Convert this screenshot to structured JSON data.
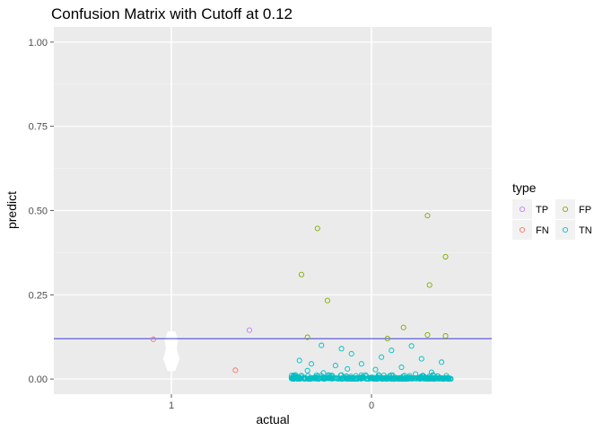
{
  "chart_data": {
    "type": "scatter",
    "title": "Confusion Matrix with Cutoff at 0.12",
    "xlabel": "actual",
    "ylabel": "predict",
    "x_categories": [
      "1",
      "0"
    ],
    "ylim": [
      -0.045,
      1.045
    ],
    "y_ticks": [
      0.0,
      0.25,
      0.5,
      0.75,
      1.0
    ],
    "y_tick_labels": [
      "0.00",
      "0.25",
      "0.50",
      "0.75",
      "1.00"
    ],
    "cutoff": 0.12,
    "cutoff_color": "#3b3bd6",
    "grid": true,
    "legend": {
      "title": "type",
      "placement": "right",
      "entries": [
        {
          "name": "TP",
          "color": "#C77CFF"
        },
        {
          "name": "FP",
          "color": "#7CAE00"
        },
        {
          "name": "FN",
          "color": "#F8766D"
        },
        {
          "name": "TN",
          "color": "#00BFC4"
        }
      ]
    },
    "violins": [
      {
        "category": "1",
        "profile": [
          [
            0.025,
            0.05
          ],
          [
            0.06,
            0.11
          ],
          [
            0.09,
            0.07
          ],
          [
            0.115,
            0.09
          ],
          [
            0.14,
            0.05
          ]
        ]
      }
    ],
    "series": [
      {
        "name": "TP",
        "points": [
          [
            0.39,
            0.145
          ]
        ]
      },
      {
        "name": "FN",
        "points": [
          [
            -0.09,
            0.118
          ],
          [
            0.32,
            0.026
          ]
        ]
      },
      {
        "name": "FP",
        "points": [
          [
            0.65,
            0.31
          ],
          [
            0.73,
            0.447
          ],
          [
            0.78,
            0.233
          ],
          [
            1.28,
            0.485
          ],
          [
            1.37,
            0.363
          ],
          [
            1.29,
            0.279
          ],
          [
            0.68,
            0.124
          ],
          [
            1.16,
            0.153
          ],
          [
            1.28,
            0.131
          ],
          [
            1.37,
            0.128
          ],
          [
            1.08,
            0.12
          ]
        ]
      },
      {
        "name": "TN",
        "points": []
      }
    ],
    "tn_cloud": {
      "category": "0",
      "x_spread": [
        0.6,
        1.4
      ],
      "count": 420,
      "above_zero": [
        [
          0.75,
          0.1
        ],
        [
          0.85,
          0.09
        ],
        [
          1.2,
          0.098
        ],
        [
          1.1,
          0.085
        ],
        [
          0.9,
          0.075
        ],
        [
          0.64,
          0.055
        ],
        [
          0.7,
          0.045
        ],
        [
          1.05,
          0.065
        ],
        [
          1.25,
          0.06
        ],
        [
          0.95,
          0.045
        ],
        [
          1.35,
          0.05
        ],
        [
          0.82,
          0.04
        ],
        [
          1.15,
          0.035
        ],
        [
          0.68,
          0.025
        ],
        [
          1.3,
          0.02
        ],
        [
          0.88,
          0.03
        ],
        [
          1.02,
          0.028
        ],
        [
          0.76,
          0.018
        ],
        [
          1.22,
          0.015
        ],
        [
          0.62,
          0.012
        ]
      ]
    }
  }
}
